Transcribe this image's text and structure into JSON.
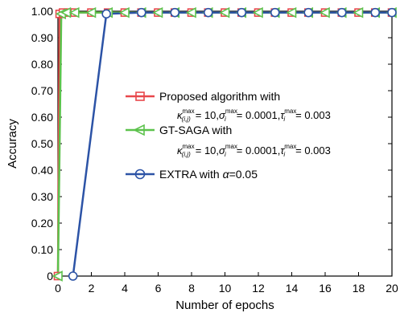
{
  "chart_data": {
    "type": "line",
    "xlabel": "Number of epochs",
    "ylabel": "Accuracy",
    "xlim": [
      0,
      20
    ],
    "ylim": [
      0,
      1.0
    ],
    "x_ticks": [
      0,
      2,
      4,
      6,
      8,
      10,
      12,
      14,
      16,
      18,
      20
    ],
    "y_ticks": [
      0,
      0.1,
      0.2,
      0.3,
      0.4,
      0.5,
      0.6,
      0.7,
      0.8,
      0.9,
      1.0
    ],
    "x_tick_labels": [
      "0",
      "2",
      "4",
      "6",
      "8",
      "10",
      "12",
      "14",
      "16",
      "18",
      "20"
    ],
    "y_tick_labels": [
      "0",
      "0.10",
      "0.20",
      "0.30",
      "0.40",
      "0.50",
      "0.60",
      "0.70",
      "0.80",
      "0.90",
      "1.00"
    ],
    "grid": false,
    "legend_position": "center-right",
    "series": [
      {
        "name": "Proposed algorithm with",
        "params": "κ(i,j)max = 10, σimax = 0.0001, τimax = 0.003",
        "color": "#e8474b",
        "marker": "square",
        "x": [
          0,
          0.1,
          0.3,
          0.6,
          1,
          2,
          3,
          4,
          5,
          6,
          7,
          8,
          9,
          10,
          11,
          12,
          13,
          14,
          15,
          16,
          17,
          18,
          19,
          20
        ],
        "y": [
          0.0,
          0.99,
          0.995,
          0.995,
          0.995,
          0.995,
          0.995,
          0.995,
          0.995,
          0.995,
          0.995,
          0.995,
          0.995,
          0.995,
          0.995,
          0.995,
          0.995,
          0.995,
          0.995,
          0.995,
          0.995,
          0.995,
          0.995,
          0.995
        ]
      },
      {
        "name": "GT-SAGA with",
        "params": "κ(i,j)max = 10, σimax = 0.0001, τimax = 0.003",
        "color": "#5cc24c",
        "marker": "triangle-left",
        "x": [
          0,
          0.2,
          0.5,
          1,
          2,
          3,
          4,
          5,
          6,
          7,
          8,
          9,
          10,
          11,
          12,
          13,
          14,
          15,
          16,
          17,
          18,
          19,
          20
        ],
        "y": [
          0.0,
          0.99,
          0.995,
          0.995,
          0.995,
          0.995,
          0.995,
          0.995,
          0.995,
          0.995,
          0.995,
          0.995,
          0.995,
          0.995,
          0.995,
          0.995,
          0.995,
          0.995,
          0.995,
          0.995,
          0.995,
          0.995,
          0.995
        ]
      },
      {
        "name": "EXTRA with α=0.05",
        "color": "#2c53a6",
        "marker": "circle",
        "x": [
          0.9,
          2.9,
          5,
          7,
          9,
          11,
          13,
          15,
          17,
          19,
          20
        ],
        "y": [
          0.0,
          0.99,
          0.995,
          0.995,
          0.995,
          0.995,
          0.995,
          0.995,
          0.995,
          0.995,
          0.995
        ]
      }
    ]
  }
}
